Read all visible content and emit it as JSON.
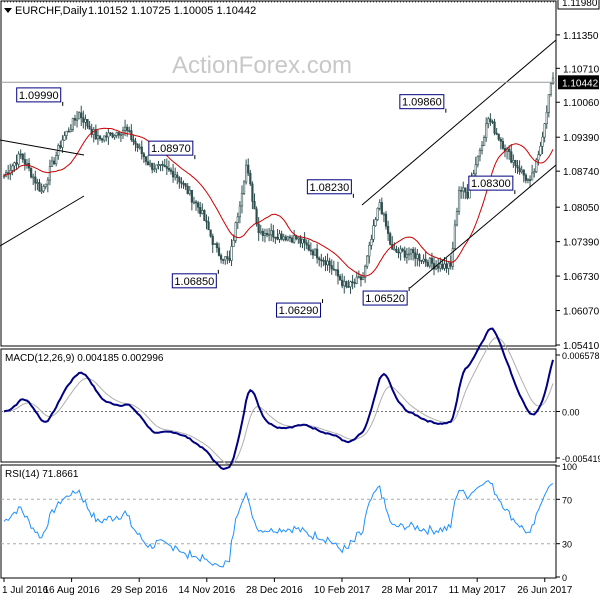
{
  "chart_data": [
    {
      "type": "candlestick",
      "symbol": "EURCHF,Daily",
      "ohlc_text": "1.10152 1.10725 1.10005 1.10442",
      "watermark": "ActionForex.com",
      "y_ticks": [
        "1.11980",
        "1.11350",
        "1.10710",
        "1.10442",
        "1.10060",
        "1.09390",
        "1.08740",
        "1.08050",
        "1.07390",
        "1.06730",
        "1.06070",
        "1.05410"
      ],
      "ylim": [
        1.0541,
        1.1198
      ],
      "last_price": "1.10442",
      "resistance_level": "1.11980",
      "ma_line": "red",
      "annotations": [
        {
          "label": "1.09990",
          "x": "2016-08-10",
          "value": 1.0999
        },
        {
          "label": "1.08970",
          "x": "2016-11-08",
          "value": 1.0897
        },
        {
          "label": "1.06850",
          "x": "2016-11-24",
          "value": 1.0685
        },
        {
          "label": "1.06290",
          "x": "2017-02-03",
          "value": 1.0629
        },
        {
          "label": "1.08230",
          "x": "2017-02-24",
          "value": 1.0823
        },
        {
          "label": "1.06520",
          "x": "2017-04-03",
          "value": 1.0652
        },
        {
          "label": "1.09860",
          "x": "2017-04-28",
          "value": 1.0986
        },
        {
          "label": "1.08300",
          "x": "2017-06-14",
          "value": 1.083
        }
      ]
    },
    {
      "type": "line",
      "title": "MACD(12,26,9) 0.004185 0.002996",
      "y_ticks": [
        "0.006578",
        "0.00",
        "-0.005419"
      ],
      "ylim": [
        -0.005419,
        0.006578
      ],
      "series": [
        {
          "name": "MACD",
          "color": "#000080"
        },
        {
          "name": "Signal",
          "color": "#b0b0b0"
        }
      ]
    },
    {
      "type": "line",
      "title": "RSI(14) 71.8661",
      "y_ticks": [
        "100",
        "70",
        "30",
        "0"
      ],
      "ylim": [
        0,
        100
      ],
      "levels": [
        70,
        30
      ],
      "series": [
        {
          "name": "RSI",
          "color": "#1e90ff"
        }
      ]
    }
  ],
  "x_labels": [
    "1 Jul 2016",
    "16 Aug 2016",
    "29 Sep 2016",
    "14 Nov 2016",
    "28 Dec 2016",
    "10 Feb 2017",
    "28 Mar 2017",
    "11 May 2017",
    "26 Jun 2017"
  ],
  "colors": {
    "candle": "#2f4f4f",
    "ma": "#cc0000",
    "macd": "#000080",
    "signal": "#b0b0b0",
    "rsi": "#1e90ff",
    "label_border": "#000080",
    "price_box": "#000000"
  }
}
